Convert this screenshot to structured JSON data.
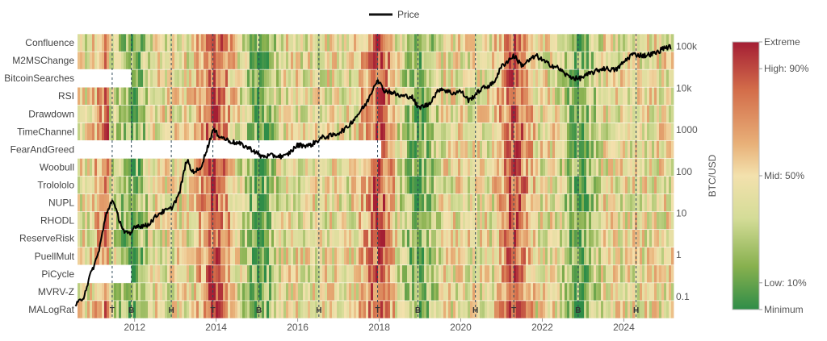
{
  "chart_data": {
    "type": "heatmap",
    "legend": {
      "label": "Price",
      "position": "top"
    },
    "rows": [
      "Confluence",
      "M2MSChange",
      "BitcoinSearches",
      "RSI",
      "Drawdown",
      "TimeChannel",
      "FearAndGreed",
      "Woobull",
      "Trolololo",
      "NUPL",
      "RHODL",
      "ReserveRisk",
      "PuellMult",
      "PiCycle",
      "MVRV-Z",
      "MALogRat"
    ],
    "x_range": [
      2010.6,
      2025.2
    ],
    "x_ticks": [
      {
        "v": 2012,
        "label": "2012"
      },
      {
        "v": 2014,
        "label": "2014"
      },
      {
        "v": 2016,
        "label": "2016"
      },
      {
        "v": 2018,
        "label": "2018"
      },
      {
        "v": 2020,
        "label": "2020"
      },
      {
        "v": 2022,
        "label": "2022"
      },
      {
        "v": 2024,
        "label": "2024"
      }
    ],
    "y_axis": {
      "label": "BTC/USD",
      "scale": "log",
      "range": [
        0.03,
        200000
      ],
      "ticks": [
        {
          "v": 0.1,
          "label": "0.1"
        },
        {
          "v": 1,
          "label": "1"
        },
        {
          "v": 10,
          "label": "10"
        },
        {
          "v": 100,
          "label": "100"
        },
        {
          "v": 1000,
          "label": "1000"
        },
        {
          "v": 10000,
          "label": "10k"
        },
        {
          "v": 100000,
          "label": "100k"
        }
      ]
    },
    "cycle_events": [
      {
        "x": 2011.45,
        "label": "T"
      },
      {
        "x": 2011.92,
        "label": "B"
      },
      {
        "x": 2012.9,
        "label": "H"
      },
      {
        "x": 2013.92,
        "label": "T"
      },
      {
        "x": 2015.05,
        "label": "B"
      },
      {
        "x": 2016.52,
        "label": "H"
      },
      {
        "x": 2017.96,
        "label": "T"
      },
      {
        "x": 2018.95,
        "label": "B"
      },
      {
        "x": 2020.36,
        "label": "H"
      },
      {
        "x": 2021.3,
        "label": "T"
      },
      {
        "x": 2022.88,
        "label": "B"
      },
      {
        "x": 2024.3,
        "label": "H"
      }
    ],
    "price_series": {
      "name": "Price",
      "x": [
        2010.55,
        2010.75,
        2010.9,
        2011.1,
        2011.3,
        2011.45,
        2011.6,
        2011.75,
        2011.9,
        2012.0,
        2012.3,
        2012.6,
        2012.9,
        2013.1,
        2013.28,
        2013.4,
        2013.6,
        2013.8,
        2013.92,
        2014.1,
        2014.3,
        2014.6,
        2014.9,
        2015.1,
        2015.4,
        2015.7,
        2016.0,
        2016.3,
        2016.6,
        2016.9,
        2017.2,
        2017.5,
        2017.7,
        2017.85,
        2017.96,
        2018.1,
        2018.3,
        2018.5,
        2018.8,
        2018.95,
        2019.2,
        2019.5,
        2019.8,
        2020.0,
        2020.2,
        2020.5,
        2020.8,
        2021.0,
        2021.3,
        2021.5,
        2021.85,
        2022.1,
        2022.4,
        2022.6,
        2022.88,
        2023.2,
        2023.5,
        2023.8,
        2024.0,
        2024.2,
        2024.5,
        2024.8,
        2025.0,
        2025.15
      ],
      "y": [
        0.06,
        0.1,
        0.3,
        1,
        9,
        22,
        8,
        3.5,
        3,
        5,
        5,
        10,
        13,
        30,
        200,
        100,
        110,
        400,
        1000,
        700,
        550,
        450,
        330,
        230,
        240,
        230,
        430,
        420,
        650,
        750,
        1100,
        2500,
        4500,
        10000,
        17000,
        9000,
        8000,
        6500,
        6300,
        3400,
        4000,
        10000,
        7500,
        8500,
        5000,
        9500,
        13000,
        33000,
        60000,
        35000,
        60000,
        40000,
        30000,
        20000,
        16500,
        23000,
        30000,
        27000,
        42000,
        65000,
        60000,
        70000,
        95000,
        96000
      ]
    },
    "color_scale": {
      "labels": [
        "Extreme",
        "High: 90%",
        "Mid: 50%",
        "Low: 10%",
        "Minimum"
      ],
      "stops": [
        [
          0.0,
          "#a41e34"
        ],
        [
          0.18,
          "#d36d4a"
        ],
        [
          0.38,
          "#e8b078"
        ],
        [
          0.5,
          "#f3e1ad"
        ],
        [
          0.66,
          "#d4dc97"
        ],
        [
          0.84,
          "#87b04e"
        ],
        [
          1.0,
          "#2f8d48"
        ]
      ]
    }
  }
}
